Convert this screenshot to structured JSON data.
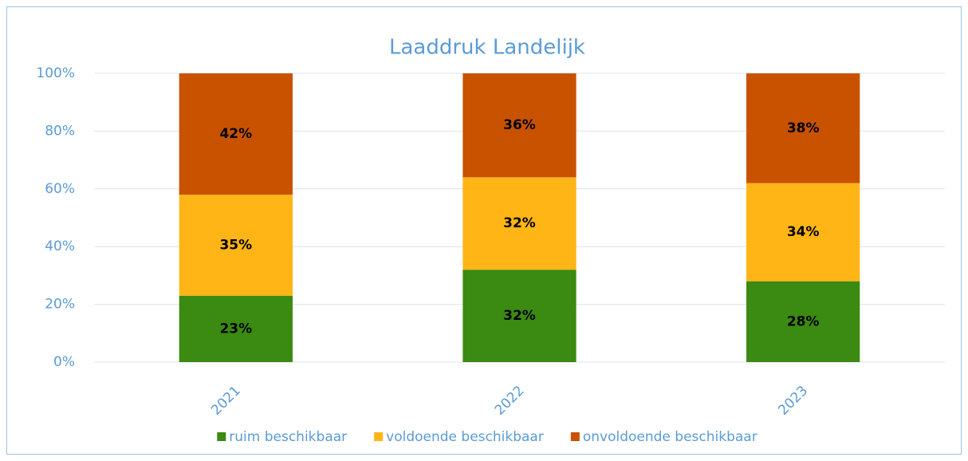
{
  "chart_data": {
    "type": "stacked_bar",
    "title": "Laaddruk Landelijk",
    "categories": [
      "2021",
      "2022",
      "2023"
    ],
    "series": [
      {
        "name": "ruim beschikbaar",
        "color": "#3b8a12",
        "values": [
          23,
          32,
          28
        ],
        "value_labels": [
          "23%",
          "32%",
          "28%"
        ]
      },
      {
        "name": "voldoende beschikbaar",
        "color": "#ffb515",
        "values": [
          35,
          32,
          34
        ],
        "value_labels": [
          "35%",
          "32%",
          "34%"
        ]
      },
      {
        "name": "onvoldoende beschikbaar",
        "color": "#c85200",
        "values": [
          42,
          36,
          38
        ],
        "value_labels": [
          "42%",
          "36%",
          "38%"
        ]
      }
    ],
    "ylim": [
      0,
      100
    ],
    "yticks": [
      {
        "value": 0,
        "label": "0%"
      },
      {
        "value": 20,
        "label": "20%"
      },
      {
        "value": 40,
        "label": "40%"
      },
      {
        "value": 60,
        "label": "60%"
      },
      {
        "value": 80,
        "label": "80%"
      },
      {
        "value": 100,
        "label": "100%"
      }
    ],
    "grid": true,
    "legend": "bottom"
  }
}
